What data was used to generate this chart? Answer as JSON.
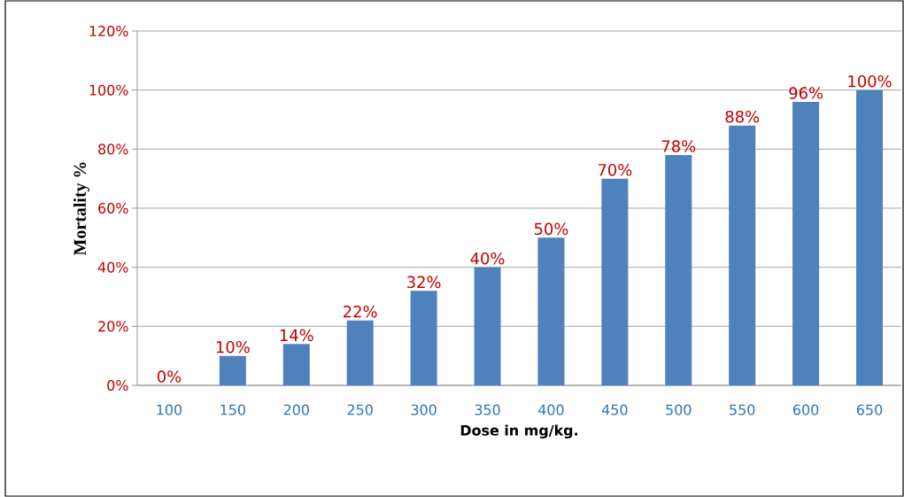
{
  "chart_data": {
    "type": "bar",
    "xlabel": "Dose in mg/kg.",
    "ylabel": "Mortality %",
    "categories": [
      "100",
      "150",
      "200",
      "250",
      "300",
      "350",
      "400",
      "450",
      "500",
      "550",
      "600",
      "650"
    ],
    "values": [
      0,
      10,
      14,
      22,
      32,
      40,
      50,
      70,
      78,
      88,
      96,
      100
    ],
    "value_labels": [
      "0%",
      "10%",
      "14%",
      "22%",
      "32%",
      "40%",
      "50%",
      "70%",
      "78%",
      "88%",
      "96%",
      "100%"
    ],
    "color": "#4f81bd",
    "ylim": [
      0,
      120
    ],
    "yticks": [
      {
        "value": 0,
        "label": "0%"
      },
      {
        "value": 20,
        "label": "20%"
      },
      {
        "value": 40,
        "label": "40%"
      },
      {
        "value": 60,
        "label": "60%"
      },
      {
        "value": 80,
        "label": "80%"
      },
      {
        "value": 100,
        "label": "100%"
      },
      {
        "value": 120,
        "label": "120%"
      }
    ],
    "grid": "y"
  }
}
